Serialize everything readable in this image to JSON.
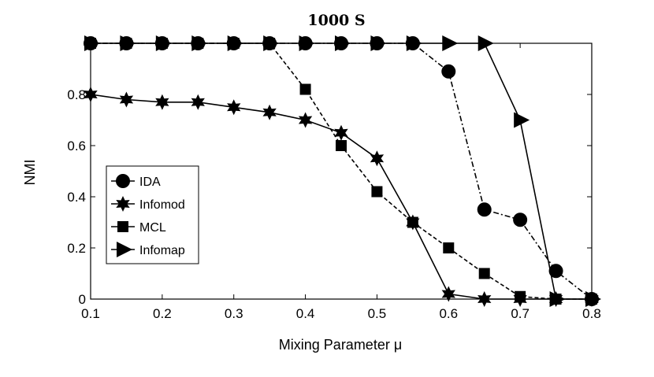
{
  "chart_data": {
    "type": "line",
    "title": "1000 S",
    "xlabel": "Mixing Parameter μ",
    "ylabel": "NMI",
    "xlim": [
      0.1,
      0.8
    ],
    "ylim": [
      0,
      1
    ],
    "xticks": [
      "0.1",
      "0.2",
      "0.3",
      "0.4",
      "0.5",
      "0.6",
      "0.7",
      "0.8"
    ],
    "yticks": [
      "0",
      "0.2",
      "0.4",
      "0.6",
      "0.8"
    ],
    "xtick_values": [
      0.1,
      0.2,
      0.3,
      0.4,
      0.5,
      0.6,
      0.7,
      0.8
    ],
    "ytick_values": [
      0,
      0.2,
      0.4,
      0.6,
      0.8
    ],
    "grid": false,
    "legend_position": "left",
    "x": [
      0.1,
      0.15,
      0.2,
      0.25,
      0.3,
      0.35,
      0.4,
      0.45,
      0.5,
      0.55,
      0.6,
      0.65,
      0.7,
      0.75,
      0.8
    ],
    "series": [
      {
        "name": "IDA",
        "marker": "circle",
        "line": "dashdot",
        "values": [
          1,
          1,
          1,
          1,
          1,
          1,
          1,
          1,
          1,
          1,
          0.89,
          0.35,
          0.31,
          0.11,
          0
        ]
      },
      {
        "name": "Infomod",
        "marker": "star",
        "line": "solid",
        "values": [
          0.8,
          0.78,
          0.77,
          0.77,
          0.75,
          0.73,
          0.7,
          0.65,
          0.55,
          0.3,
          0.02,
          0,
          0,
          0,
          0
        ]
      },
      {
        "name": "MCL",
        "marker": "square",
        "line": "dashed",
        "values": [
          1,
          1,
          1,
          1,
          1,
          1,
          0.82,
          0.6,
          0.42,
          0.3,
          0.2,
          0.1,
          0.01,
          0,
          0
        ]
      },
      {
        "name": "Infomap",
        "marker": "triangle",
        "line": "solid",
        "values": [
          1,
          1,
          1,
          1,
          1,
          1,
          1,
          1,
          1,
          1,
          1,
          1,
          0.7,
          0,
          0
        ]
      }
    ]
  }
}
